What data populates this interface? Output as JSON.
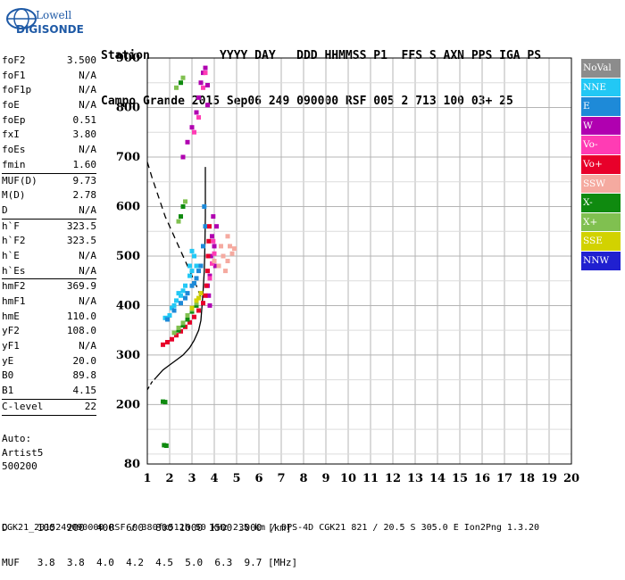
{
  "logo": {
    "line1": "Lowell",
    "line2": "DIGISONDE"
  },
  "header": {
    "line1": "Station          YYYY DAY   DDD HHMMSS P1  FFS S AXN PPS IGA PS",
    "line2": "Campo Grande 2015 Sep06 249 090000 RSF 005 2 713 100 03+ 25"
  },
  "params": [
    {
      "k": "foF2",
      "v": "3.500"
    },
    {
      "k": "foF1",
      "v": "N/A"
    },
    {
      "k": "foF1p",
      "v": "N/A"
    },
    {
      "k": "foE",
      "v": "N/A"
    },
    {
      "k": "foEp",
      "v": "0.51"
    },
    {
      "k": "fxI",
      "v": "3.80"
    },
    {
      "k": "foEs",
      "v": "N/A"
    },
    {
      "k": "fmin",
      "v": "1.60"
    },
    {
      "k": "MUF(D)",
      "v": "9.73",
      "sep": true
    },
    {
      "k": "M(D)",
      "v": "2.78"
    },
    {
      "k": "D",
      "v": "N/A"
    },
    {
      "k": "h`F",
      "v": "323.5",
      "sep": true
    },
    {
      "k": "h`F2",
      "v": "323.5"
    },
    {
      "k": "h`E",
      "v": "N/A"
    },
    {
      "k": "h`Es",
      "v": "N/A"
    },
    {
      "k": "hmF2",
      "v": "369.9",
      "sep": true
    },
    {
      "k": "hmF1",
      "v": "N/A"
    },
    {
      "k": "hmE",
      "v": "110.0"
    },
    {
      "k": "yF2",
      "v": "108.0"
    },
    {
      "k": "yF1",
      "v": "N/A"
    },
    {
      "k": "yE",
      "v": "20.0"
    },
    {
      "k": "B0",
      "v": "89.8"
    },
    {
      "k": "B1",
      "v": "4.15"
    },
    {
      "k": "C-level",
      "v": "22",
      "sep": true
    }
  ],
  "auto": {
    "l1": "Auto:",
    "l2": "Artist5",
    "l3": "500200"
  },
  "legend": [
    {
      "label": "NoVal",
      "color": "#8c8c8c"
    },
    {
      "label": "NNE",
      "color": "#22c8f5"
    },
    {
      "label": "E",
      "color": "#1e8ad8"
    },
    {
      "label": "W",
      "color": "#b000b0"
    },
    {
      "label": "Vo-",
      "color": "#ff3cb4"
    },
    {
      "label": "Vo+",
      "color": "#e8002a"
    },
    {
      "label": "SSW",
      "color": "#f5aaa0"
    },
    {
      "label": "X-",
      "color": "#0f8a0f"
    },
    {
      "label": "X+",
      "color": "#80c050"
    },
    {
      "label": "SSE",
      "color": "#d2d200"
    },
    {
      "label": "NNW",
      "color": "#2020d0"
    }
  ],
  "bottom": {
    "d_line": "D     100  200  400  600  800 1000 1500 3000 [km]",
    "muf_line": "MUF   3.8  3.8  4.0  4.2  4.5  5.0  6.3  9.7 [MHz]"
  },
  "footer": "CGK21_2015249090000.RSF / 380fx512h 50 kHz 2.5 km / DPS-4D CGK21 821 / 20.5 S 305.0 E Ion2Png 1.3.20",
  "chart_data": {
    "type": "scatter",
    "title": "",
    "xlabel": "",
    "ylabel": "",
    "xlim": [
      1,
      20
    ],
    "ylim": [
      80,
      900
    ],
    "xticks": [
      1,
      2,
      3,
      4,
      5,
      6,
      7,
      8,
      9,
      10,
      11,
      12,
      13,
      14,
      15,
      16,
      17,
      18,
      19,
      20
    ],
    "yticks": [
      80,
      200,
      300,
      400,
      500,
      600,
      700,
      800,
      900
    ],
    "grid": true,
    "series": [
      {
        "name": "NNE",
        "color": "#22c8f5",
        "points": [
          [
            1.8,
            375
          ],
          [
            2.0,
            380
          ],
          [
            2.1,
            395
          ],
          [
            2.3,
            410
          ],
          [
            2.5,
            420
          ],
          [
            2.7,
            440
          ],
          [
            2.9,
            460
          ],
          [
            3.0,
            470
          ],
          [
            3.1,
            500
          ],
          [
            3.2,
            480
          ],
          [
            2.6,
            430
          ],
          [
            2.2,
            400
          ],
          [
            2.9,
            480
          ],
          [
            3.0,
            510
          ],
          [
            2.4,
            425
          ]
        ]
      },
      {
        "name": "E",
        "color": "#1e8ad8",
        "points": [
          [
            1.9,
            372
          ],
          [
            2.2,
            390
          ],
          [
            2.5,
            405
          ],
          [
            2.8,
            425
          ],
          [
            3.0,
            440
          ],
          [
            3.2,
            455
          ],
          [
            3.3,
            470
          ],
          [
            3.1,
            445
          ],
          [
            2.7,
            415
          ],
          [
            3.4,
            480
          ],
          [
            3.5,
            520
          ],
          [
            3.6,
            560
          ],
          [
            3.55,
            600
          ]
        ]
      },
      {
        "name": "W",
        "color": "#b000b0",
        "points": [
          [
            2.6,
            700
          ],
          [
            2.8,
            730
          ],
          [
            3.0,
            760
          ],
          [
            3.2,
            790
          ],
          [
            3.3,
            820
          ],
          [
            3.4,
            850
          ],
          [
            3.5,
            870
          ],
          [
            3.6,
            880
          ],
          [
            3.7,
            845
          ],
          [
            3.7,
            805
          ],
          [
            3.8,
            460
          ],
          [
            3.85,
            500
          ],
          [
            3.9,
            540
          ],
          [
            3.95,
            580
          ],
          [
            4.0,
            520
          ],
          [
            4.05,
            480
          ],
          [
            4.1,
            560
          ],
          [
            3.75,
            420
          ],
          [
            3.8,
            400
          ],
          [
            3.7,
            440
          ]
        ]
      },
      {
        "name": "Vo-",
        "color": "#ff3cb4",
        "points": [
          [
            3.6,
            870
          ],
          [
            3.5,
            840
          ],
          [
            3.3,
            780
          ],
          [
            3.1,
            750
          ],
          [
            3.8,
            455
          ],
          [
            3.9,
            485
          ],
          [
            4.0,
            505
          ],
          [
            3.95,
            530
          ]
        ]
      },
      {
        "name": "Vo+",
        "color": "#e8002a",
        "points": [
          [
            1.7,
            321
          ],
          [
            1.9,
            326
          ],
          [
            2.1,
            332
          ],
          [
            2.3,
            340
          ],
          [
            2.5,
            348
          ],
          [
            2.7,
            357
          ],
          [
            2.9,
            366
          ],
          [
            3.1,
            377
          ],
          [
            3.3,
            390
          ],
          [
            3.5,
            405
          ],
          [
            3.6,
            420
          ],
          [
            3.65,
            440
          ],
          [
            3.7,
            470
          ],
          [
            3.72,
            500
          ],
          [
            3.75,
            530
          ],
          [
            3.78,
            560
          ]
        ]
      },
      {
        "name": "SSW",
        "color": "#f5aaa0",
        "points": [
          [
            4.0,
            490
          ],
          [
            4.2,
            480
          ],
          [
            4.4,
            500
          ],
          [
            4.6,
            490
          ],
          [
            4.7,
            520
          ],
          [
            4.8,
            505
          ],
          [
            4.9,
            515
          ],
          [
            4.5,
            470
          ],
          [
            4.3,
            520
          ],
          [
            4.6,
            540
          ]
        ]
      },
      {
        "name": "X-",
        "color": "#0f8a0f",
        "points": [
          [
            1.7,
            206
          ],
          [
            1.8,
            205
          ],
          [
            1.75,
            118
          ],
          [
            1.85,
            117
          ],
          [
            2.4,
            350
          ],
          [
            2.6,
            360
          ],
          [
            2.8,
            372
          ],
          [
            3.0,
            388
          ],
          [
            3.2,
            400
          ],
          [
            2.5,
            580
          ],
          [
            2.6,
            600
          ],
          [
            2.5,
            850
          ]
        ]
      },
      {
        "name": "X+",
        "color": "#80c050",
        "points": [
          [
            2.2,
            345
          ],
          [
            2.4,
            355
          ],
          [
            2.6,
            365
          ],
          [
            2.8,
            380
          ],
          [
            3.0,
            392
          ],
          [
            3.2,
            405
          ],
          [
            2.4,
            570
          ],
          [
            2.7,
            610
          ],
          [
            2.3,
            840
          ],
          [
            2.6,
            860
          ]
        ]
      },
      {
        "name": "SSE",
        "color": "#d2d200",
        "points": [
          [
            3.0,
            395
          ],
          [
            3.2,
            410
          ],
          [
            3.4,
            425
          ],
          [
            3.3,
            415
          ]
        ]
      }
    ],
    "profile_solid": [
      [
        1.4,
        255
      ],
      [
        1.7,
        270
      ],
      [
        2.0,
        280
      ],
      [
        2.3,
        290
      ],
      [
        2.6,
        300
      ],
      [
        2.9,
        315
      ],
      [
        3.1,
        330
      ],
      [
        3.3,
        350
      ],
      [
        3.4,
        370
      ],
      [
        3.45,
        400
      ],
      [
        3.5,
        430
      ],
      [
        3.55,
        470
      ],
      [
        3.58,
        520
      ],
      [
        3.6,
        580
      ],
      [
        3.6,
        640
      ],
      [
        3.6,
        680
      ]
    ],
    "profile_dashed": [
      [
        1.0,
        690
      ],
      [
        1.2,
        660
      ],
      [
        1.5,
        620
      ],
      [
        1.8,
        580
      ],
      [
        2.1,
        550
      ],
      [
        2.4,
        520
      ],
      [
        2.7,
        490
      ],
      [
        3.0,
        460
      ],
      [
        3.2,
        440
      ],
      [
        3.45,
        410
      ]
    ],
    "profile_dashed_low": [
      [
        1.0,
        230
      ],
      [
        1.2,
        245
      ],
      [
        1.4,
        255
      ]
    ]
  }
}
